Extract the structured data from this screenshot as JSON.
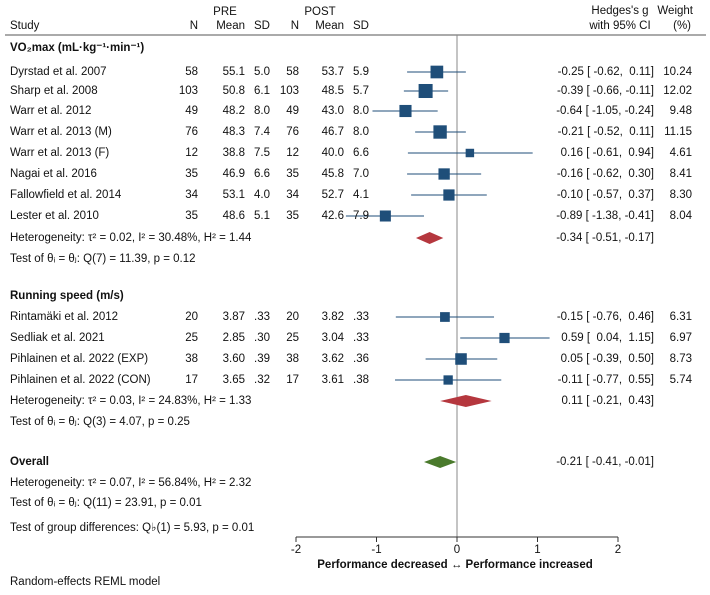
{
  "header": {
    "study": "Study",
    "pre": "PRE",
    "post": "POST",
    "n": "N",
    "mean": "Mean",
    "sd": "SD",
    "hedges_line1": "Hedges's g",
    "hedges_line2": "with 95% CI",
    "weight_line1": "Weight",
    "weight_line2": "(%)"
  },
  "groups": [
    {
      "title": "VO₂max (mL·kg⁻¹·min⁻¹)",
      "studies": [
        {
          "name": "Dyrstad et al. 2007",
          "pre_n": "58",
          "pre_mean": "55.1",
          "pre_sd": "5.0",
          "post_n": "58",
          "post_mean": "53.7",
          "post_sd": "5.9",
          "ci_text": "-0.25 [ -0.62,  0.11]",
          "weight": "10.24"
        },
        {
          "name": "Sharp et al. 2008",
          "pre_n": "103",
          "pre_mean": "50.8",
          "pre_sd": "6.1",
          "post_n": "103",
          "post_mean": "48.5",
          "post_sd": "5.7",
          "ci_text": "-0.39 [ -0.66, -0.11]",
          "weight": "12.02"
        },
        {
          "name": "Warr et al. 2012",
          "pre_n": "49",
          "pre_mean": "48.2",
          "pre_sd": "8.0",
          "post_n": "49",
          "post_mean": "43.0",
          "post_sd": "8.0",
          "ci_text": "-0.64 [ -1.05, -0.24]",
          "weight": "9.48"
        },
        {
          "name": "Warr et al. 2013 (M)",
          "pre_n": "76",
          "pre_mean": "48.3",
          "pre_sd": "7.4",
          "post_n": "76",
          "post_mean": "46.7",
          "post_sd": "8.0",
          "ci_text": "-0.21 [ -0.52,  0.11]",
          "weight": "11.15"
        },
        {
          "name": "Warr et al. 2013 (F)",
          "pre_n": "12",
          "pre_mean": "38.8",
          "pre_sd": "7.5",
          "post_n": "12",
          "post_mean": "40.0",
          "post_sd": "6.6",
          "ci_text": " 0.16 [ -0.61,  0.94]",
          "weight": "4.61"
        },
        {
          "name": "Nagai et al. 2016",
          "pre_n": "35",
          "pre_mean": "46.9",
          "pre_sd": "6.6",
          "post_n": "35",
          "post_mean": "45.8",
          "post_sd": "7.0",
          "ci_text": "-0.16 [ -0.62,  0.30]",
          "weight": "8.41"
        },
        {
          "name": "Fallowfield et al. 2014",
          "pre_n": "34",
          "pre_mean": "53.1",
          "pre_sd": "4.0",
          "post_n": "34",
          "post_mean": "52.7",
          "post_sd": "4.1",
          "ci_text": "-0.10 [ -0.57,  0.37]",
          "weight": "8.30"
        },
        {
          "name": "Lester et al. 2010",
          "pre_n": "35",
          "pre_mean": "48.6",
          "pre_sd": "5.1",
          "post_n": "35",
          "post_mean": "42.6",
          "post_sd": "7.9",
          "ci_text": "-0.89 [ -1.38, -0.41]",
          "weight": "8.04"
        }
      ],
      "heterogeneity": "Heterogeneity: τ² = 0.02, I² = 30.48%, H² = 1.44",
      "pooled_ci_text": "-0.34 [ -0.51, -0.17]",
      "test": "Test of θᵢ = θⱼ: Q(7) = 11.39, p = 0.12"
    },
    {
      "title": "Running speed (m/s)",
      "studies": [
        {
          "name": "Rintamäki et al. 2012",
          "pre_n": "20",
          "pre_mean": "3.87",
          "pre_sd": ".33",
          "post_n": "20",
          "post_mean": "3.82",
          "post_sd": ".33",
          "ci_text": "-0.15 [ -0.76,  0.46]",
          "weight": "6.31"
        },
        {
          "name": "Sedliak et al. 2021",
          "pre_n": "25",
          "pre_mean": "2.85",
          "pre_sd": ".30",
          "post_n": "25",
          "post_mean": "3.04",
          "post_sd": ".33",
          "ci_text": " 0.59 [  0.04,  1.15]",
          "weight": "6.97"
        },
        {
          "name": "Pihlainen et al. 2022 (EXP)",
          "pre_n": "38",
          "pre_mean": "3.60",
          "pre_sd": ".39",
          "post_n": "38",
          "post_mean": "3.62",
          "post_sd": ".36",
          "ci_text": " 0.05 [ -0.39,  0.50]",
          "weight": "8.73"
        },
        {
          "name": "Pihlainen et al. 2022 (CON)",
          "pre_n": "17",
          "pre_mean": "3.65",
          "pre_sd": ".32",
          "post_n": "17",
          "post_mean": "3.61",
          "post_sd": ".38",
          "ci_text": "-0.11 [ -0.77,  0.55]",
          "weight": "5.74"
        }
      ],
      "heterogeneity": "Heterogeneity: τ² = 0.03, I² = 24.83%, H² = 1.33",
      "pooled_ci_text": " 0.11 [ -0.21,  0.43]",
      "test": "Test of θᵢ = θⱼ: Q(3) = 4.07, p = 0.25"
    }
  ],
  "overall": {
    "title": "Overall",
    "ci_text": "-0.21 [ -0.41, -0.01]",
    "heterogeneity": "Heterogeneity: τ² = 0.07, I² = 56.84%, H² = 2.32",
    "test": "Test of θᵢ = θⱼ: Q(11) = 23.91, p = 0.01",
    "group_test": "Test of group differences: Q♭(1) = 5.93, p = 0.01"
  },
  "axis_caption": "Performance decreased ↔ Performance increased",
  "footnote": "Random-effects REML model",
  "colors": {
    "marker": "#1f4e79",
    "subgroup_diamond": "#b5373e",
    "overall_diamond": "#4a7a2c",
    "axis": "#555555"
  },
  "chart_data": {
    "type": "scatter",
    "subtype": "forest-plot",
    "xlim": [
      -2,
      2
    ],
    "xticks": [
      "-2",
      "-1",
      "0",
      "1",
      "2"
    ],
    "reference_line": 0,
    "studies": [
      {
        "group": 0,
        "g": -0.25,
        "lo": -0.62,
        "hi": 0.11,
        "weight": 10.24
      },
      {
        "group": 0,
        "g": -0.39,
        "lo": -0.66,
        "hi": -0.11,
        "weight": 12.02
      },
      {
        "group": 0,
        "g": -0.64,
        "lo": -1.05,
        "hi": -0.24,
        "weight": 9.48
      },
      {
        "group": 0,
        "g": -0.21,
        "lo": -0.52,
        "hi": 0.11,
        "weight": 11.15
      },
      {
        "group": 0,
        "g": 0.16,
        "lo": -0.61,
        "hi": 0.94,
        "weight": 4.61
      },
      {
        "group": 0,
        "g": -0.16,
        "lo": -0.62,
        "hi": 0.3,
        "weight": 8.41
      },
      {
        "group": 0,
        "g": -0.1,
        "lo": -0.57,
        "hi": 0.37,
        "weight": 8.3
      },
      {
        "group": 0,
        "g": -0.89,
        "lo": -1.38,
        "hi": -0.41,
        "weight": 8.04
      },
      {
        "group": 1,
        "g": -0.15,
        "lo": -0.76,
        "hi": 0.46,
        "weight": 6.31
      },
      {
        "group": 1,
        "g": 0.59,
        "lo": 0.04,
        "hi": 1.15,
        "weight": 6.97
      },
      {
        "group": 1,
        "g": 0.05,
        "lo": -0.39,
        "hi": 0.5,
        "weight": 8.73
      },
      {
        "group": 1,
        "g": -0.11,
        "lo": -0.77,
        "hi": 0.55,
        "weight": 5.74
      }
    ],
    "pooled": [
      {
        "group": 0,
        "g": -0.34,
        "lo": -0.51,
        "hi": -0.17
      },
      {
        "group": 1,
        "g": 0.11,
        "lo": -0.21,
        "hi": 0.43
      }
    ],
    "overall": {
      "g": -0.21,
      "lo": -0.41,
      "hi": -0.01
    }
  }
}
